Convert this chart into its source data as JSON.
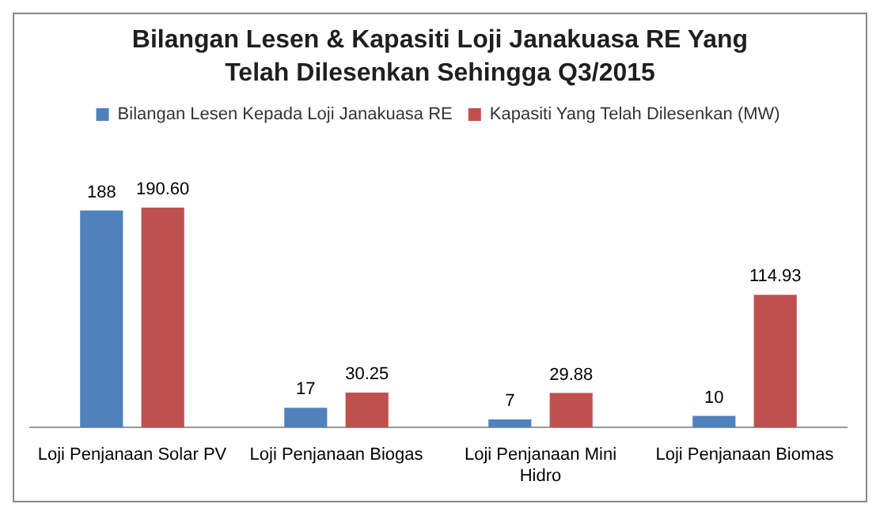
{
  "chart_data": {
    "type": "bar",
    "title": "Bilangan Lesen & Kapasiti Loji Janakuasa RE Yang Telah Dilesenkan Sehingga Q3/2015",
    "categories": [
      "Loji Penjanaan Solar PV",
      "Loji Penjanaan Biogas",
      "Loji Penjanaan Mini Hidro",
      "Loji Penjanaan Biomas"
    ],
    "series": [
      {
        "name": "Bilangan Lesen Kepada Loji Janakuasa RE",
        "color": "#4f81bd",
        "values": [
          188,
          17,
          7,
          10
        ],
        "value_labels": [
          "188",
          "17",
          "7",
          "10"
        ]
      },
      {
        "name": "Kapasiti Yang Telah Dilesenkan (MW)",
        "color": "#c0504d",
        "values": [
          190.6,
          30.25,
          29.88,
          114.93
        ],
        "value_labels": [
          "190.60",
          "30.25",
          "29.88",
          "114.93"
        ]
      }
    ],
    "grid": false,
    "legend": "top",
    "tick_labels": "x"
  }
}
